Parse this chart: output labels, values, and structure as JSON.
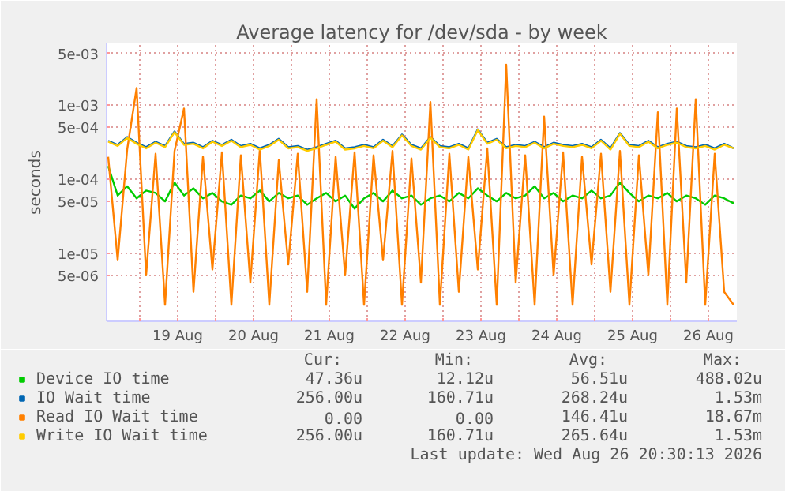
{
  "chart_data": {
    "type": "line",
    "title": "Average latency for /dev/sda - by week",
    "ylabel": "seconds",
    "x": [
      "2026-08-18T14:00",
      "2026-08-18T17:00",
      "2026-08-18T20:00",
      "2026-08-18T23:00",
      "2026-08-19T02:00",
      "2026-08-19T05:00",
      "2026-08-19T08:00",
      "2026-08-19T11:00",
      "2026-08-19T14:00",
      "2026-08-19T17:00",
      "2026-08-19T20:00",
      "2026-08-19T23:00",
      "2026-08-20T02:00",
      "2026-08-20T05:00",
      "2026-08-20T08:00",
      "2026-08-20T11:00",
      "2026-08-20T14:00",
      "2026-08-20T17:00",
      "2026-08-20T20:00",
      "2026-08-20T23:00",
      "2026-08-21T02:00",
      "2026-08-21T05:00",
      "2026-08-21T08:00",
      "2026-08-21T11:00",
      "2026-08-21T14:00",
      "2026-08-21T17:00",
      "2026-08-21T20:00",
      "2026-08-21T23:00",
      "2026-08-22T02:00",
      "2026-08-22T05:00",
      "2026-08-22T08:00",
      "2026-08-22T11:00",
      "2026-08-22T14:00",
      "2026-08-22T17:00",
      "2026-08-22T20:00",
      "2026-08-22T23:00",
      "2026-08-23T02:00",
      "2026-08-23T05:00",
      "2026-08-23T08:00",
      "2026-08-23T11:00",
      "2026-08-23T14:00",
      "2026-08-23T17:00",
      "2026-08-23T20:00",
      "2026-08-23T23:00",
      "2026-08-24T02:00",
      "2026-08-24T05:00",
      "2026-08-24T08:00",
      "2026-08-24T11:00",
      "2026-08-24T14:00",
      "2026-08-24T17:00",
      "2026-08-24T20:00",
      "2026-08-24T23:00",
      "2026-08-25T02:00",
      "2026-08-25T05:00",
      "2026-08-25T08:00",
      "2026-08-25T11:00",
      "2026-08-25T14:00",
      "2026-08-25T17:00",
      "2026-08-25T20:00",
      "2026-08-25T23:00",
      "2026-08-26T02:00",
      "2026-08-26T05:00",
      "2026-08-26T08:00",
      "2026-08-26T11:00",
      "2026-08-26T14:00",
      "2026-08-26T17:00",
      "2026-08-26T20:00"
    ],
    "series": [
      {
        "name": "Device IO time",
        "color": "#00cc00",
        "values": [
          0.00015,
          6e-05,
          8e-05,
          5.5e-05,
          7e-05,
          6.5e-05,
          5e-05,
          9e-05,
          6e-05,
          7.5e-05,
          5.5e-05,
          6.5e-05,
          5e-05,
          4.5e-05,
          6e-05,
          5.5e-05,
          7e-05,
          5e-05,
          6.5e-05,
          5.5e-05,
          6e-05,
          4.5e-05,
          5.5e-05,
          6.5e-05,
          5e-05,
          6e-05,
          4e-05,
          5.5e-05,
          6.5e-05,
          5e-05,
          7e-05,
          5.5e-05,
          6e-05,
          4.5e-05,
          5.5e-05,
          6e-05,
          5e-05,
          6.5e-05,
          5.5e-05,
          7.5e-05,
          6e-05,
          5e-05,
          6.5e-05,
          5.5e-05,
          6e-05,
          8e-05,
          5.5e-05,
          6.5e-05,
          5e-05,
          6e-05,
          5.5e-05,
          7e-05,
          5.5e-05,
          6e-05,
          9e-05,
          6.5e-05,
          5e-05,
          6e-05,
          5.5e-05,
          6.5e-05,
          5e-05,
          6e-05,
          5.5e-05,
          4.5e-05,
          6e-05,
          5.5e-05,
          4.7e-05
        ]
      },
      {
        "name": "IO Wait time",
        "color": "#0066b3",
        "values": [
          0.00033,
          0.00029,
          0.00037,
          0.00031,
          0.00027,
          0.00032,
          0.00028,
          0.00044,
          0.0003,
          0.00031,
          0.00027,
          0.00033,
          0.00029,
          0.00034,
          0.00028,
          0.0003,
          0.00026,
          0.00029,
          0.00035,
          0.00027,
          0.00028,
          0.00025,
          0.00027,
          0.0003,
          0.00033,
          0.00026,
          0.00027,
          0.00029,
          0.00027,
          0.00034,
          0.00028,
          0.0004,
          0.00029,
          0.00026,
          0.00037,
          0.00028,
          0.00027,
          0.0003,
          0.00026,
          0.00047,
          0.00031,
          0.00035,
          0.00027,
          0.00029,
          0.00028,
          0.00032,
          0.00027,
          0.00031,
          0.00029,
          0.00028,
          0.0003,
          0.00027,
          0.00034,
          0.00026,
          0.00042,
          0.00029,
          0.00028,
          0.00033,
          0.00027,
          0.0003,
          0.00032,
          0.00028,
          0.00027,
          0.00029,
          0.00026,
          0.0003,
          0.00026
        ]
      },
      {
        "name": "Read IO Wait time",
        "color": "#ff8000",
        "values": [
          0.0002,
          8e-06,
          0.00025,
          0.0017,
          5e-06,
          0.00022,
          2e-06,
          0.00024,
          0.0009,
          3e-06,
          0.0002,
          6e-06,
          0.00023,
          2e-06,
          0.00021,
          4e-06,
          0.00025,
          2e-06,
          0.00018,
          7e-06,
          0.00022,
          3e-06,
          0.0012,
          2e-06,
          0.0002,
          5e-06,
          0.00023,
          2e-06,
          0.00021,
          8e-06,
          0.00024,
          2e-06,
          0.00019,
          4e-06,
          0.0011,
          2e-06,
          0.00022,
          3e-06,
          0.0002,
          6e-06,
          0.00026,
          2e-06,
          0.0035,
          4e-06,
          0.00021,
          2e-06,
          0.0007,
          5e-06,
          0.00023,
          2e-06,
          0.0002,
          7e-06,
          0.00022,
          3e-06,
          0.00024,
          2e-06,
          0.00021,
          5e-06,
          0.0008,
          2e-06,
          0.0009,
          4e-06,
          0.0012,
          2e-06,
          0.00022,
          3e-06,
          2e-06
        ]
      },
      {
        "name": "Write IO Wait time",
        "color": "#ffcc00",
        "values": [
          0.00032,
          0.00028,
          0.00036,
          0.0003,
          0.00026,
          0.00031,
          0.00027,
          0.00043,
          0.00029,
          0.0003,
          0.00026,
          0.00032,
          0.00028,
          0.00033,
          0.00027,
          0.00029,
          0.00025,
          0.00028,
          0.00034,
          0.00026,
          0.00027,
          0.00024,
          0.00026,
          0.00029,
          0.00032,
          0.00025,
          0.00026,
          0.00028,
          0.00026,
          0.00033,
          0.00027,
          0.00039,
          0.00028,
          0.00025,
          0.00036,
          0.00027,
          0.00026,
          0.00029,
          0.00025,
          0.00046,
          0.0003,
          0.00034,
          0.00026,
          0.00028,
          0.00027,
          0.00031,
          0.00026,
          0.0003,
          0.00028,
          0.00027,
          0.00029,
          0.00026,
          0.00033,
          0.00025,
          0.00041,
          0.00028,
          0.00027,
          0.00032,
          0.00026,
          0.00029,
          0.00031,
          0.00027,
          0.00026,
          0.00028,
          0.00025,
          0.00029,
          0.00026
        ]
      }
    ],
    "xlim": [
      "2026-08-18T13:30",
      "2026-08-26T21:00"
    ],
    "xticks": [
      {
        "value": "2026-08-19T00:00",
        "label": null
      },
      {
        "value": "2026-08-19T12:00",
        "label": "19 Aug"
      },
      {
        "value": "2026-08-20T00:00",
        "label": null
      },
      {
        "value": "2026-08-20T12:00",
        "label": "20 Aug"
      },
      {
        "value": "2026-08-21T00:00",
        "label": null
      },
      {
        "value": "2026-08-21T12:00",
        "label": "21 Aug"
      },
      {
        "value": "2026-08-22T00:00",
        "label": null
      },
      {
        "value": "2026-08-22T12:00",
        "label": "22 Aug"
      },
      {
        "value": "2026-08-23T00:00",
        "label": null
      },
      {
        "value": "2026-08-23T12:00",
        "label": "23 Aug"
      },
      {
        "value": "2026-08-24T00:00",
        "label": null
      },
      {
        "value": "2026-08-24T12:00",
        "label": "24 Aug"
      },
      {
        "value": "2026-08-25T00:00",
        "label": null
      },
      {
        "value": "2026-08-25T12:00",
        "label": "25 Aug"
      },
      {
        "value": "2026-08-26T00:00",
        "label": null
      },
      {
        "value": "2026-08-26T12:00",
        "label": "26 Aug"
      }
    ],
    "ylim": [
      1.2e-06,
      0.0068
    ],
    "yticks": [
      {
        "value": 5e-06,
        "label": "5e-06"
      },
      {
        "value": 1e-05,
        "label": "1e-05"
      },
      {
        "value": 5e-05,
        "label": "5e-05"
      },
      {
        "value": 0.0001,
        "label": "1e-04"
      },
      {
        "value": 0.0005,
        "label": "5e-04"
      },
      {
        "value": 0.001,
        "label": "1e-03"
      },
      {
        "value": 0.005,
        "label": "5e-03"
      }
    ],
    "log": "y",
    "grid": true,
    "legend": "bottom",
    "line_style": "solid",
    "marker": "none",
    "annotations": [
      "Cur:",
      "Min:",
      "Avg:",
      "Max:",
      "47.36u",
      "12.12u",
      "56.51u",
      "488.02u",
      "256.00u",
      "160.71u",
      "268.24u",
      "1.53m",
      "0.00",
      "0.00",
      "146.41u",
      "18.67m",
      "256.00u",
      "160.71u",
      "265.64u",
      "1.53m",
      "Last update: Wed Aug 26 20:30:13 2026"
    ]
  }
}
